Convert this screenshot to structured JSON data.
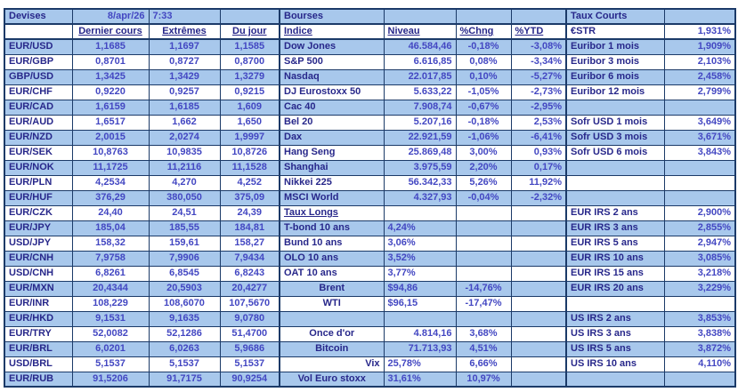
{
  "meta": {
    "date": "8/apr/26",
    "time": "7:33"
  },
  "colors": {
    "row_shade": "#a8c8ec",
    "label_text": "#27278a",
    "value_text": "#4347c2",
    "grid_line": "#1b3a68",
    "background": "#ffffff"
  },
  "devises": {
    "title": "Devises",
    "headers": [
      "Dernier cours",
      "Extrêmes",
      "Du jour"
    ],
    "rows": [
      {
        "pair": "EUR/USD",
        "last": "1,1685",
        "extremes": "1,1697",
        "day": "1,1585"
      },
      {
        "pair": "EUR/GBP",
        "last": "0,8701",
        "extremes": "0,8727",
        "day": "0,8700"
      },
      {
        "pair": "GBP/USD",
        "last": "1,3425",
        "extremes": "1,3429",
        "day": "1,3279"
      },
      {
        "pair": "EUR/CHF",
        "last": "0,9220",
        "extremes": "0,9257",
        "day": "0,9215"
      },
      {
        "pair": "EUR/CAD",
        "last": "1,6159",
        "extremes": "1,6185",
        "day": "1,609"
      },
      {
        "pair": "EUR/AUD",
        "last": "1,6517",
        "extremes": "1,662",
        "day": "1,650"
      },
      {
        "pair": "EUR/NZD",
        "last": "2,0015",
        "extremes": "2,0274",
        "day": "1,9997"
      },
      {
        "pair": "EUR/SEK",
        "last": "10,8763",
        "extremes": "10,9835",
        "day": "10,8726"
      },
      {
        "pair": "EUR/NOK",
        "last": "11,1725",
        "extremes": "11,2116",
        "day": "11,1528"
      },
      {
        "pair": "EUR/PLN",
        "last": "4,2534",
        "extremes": "4,270",
        "day": "4,252"
      },
      {
        "pair": "EUR/HUF",
        "last": "376,29",
        "extremes": "380,050",
        "day": "375,09"
      },
      {
        "pair": "EUR/CZK",
        "last": "24,40",
        "extremes": "24,51",
        "day": "24,39"
      },
      {
        "pair": "EUR/JPY",
        "last": "185,04",
        "extremes": "185,55",
        "day": "184,81"
      },
      {
        "pair": "USD/JPY",
        "last": "158,32",
        "extremes": "159,61",
        "day": "158,27"
      },
      {
        "pair": "EUR/CNH",
        "last": "7,9758",
        "extremes": "7,9906",
        "day": "7,9434"
      },
      {
        "pair": "USD/CNH",
        "last": "6,8261",
        "extremes": "6,8545",
        "day": "6,8243"
      },
      {
        "pair": "EUR/MXN",
        "last": "20,4344",
        "extremes": "20,5903",
        "day": "20,4277"
      },
      {
        "pair": "EUR/INR",
        "last": "108,229",
        "extremes": "108,6070",
        "day": "107,5670"
      },
      {
        "pair": "EUR/HKD",
        "last": "9,1531",
        "extremes": "9,1635",
        "day": "9,0780"
      },
      {
        "pair": "EUR/TRY",
        "last": "52,0082",
        "extremes": "52,1286",
        "day": "51,4700"
      },
      {
        "pair": "EUR/BRL",
        "last": "6,0201",
        "extremes": "6,0263",
        "day": "5,9686"
      },
      {
        "pair": "USD/BRL",
        "last": "5,1537",
        "extremes": "5,1537",
        "day": "5,1537"
      },
      {
        "pair": "EUR/RUB",
        "last": "91,5206",
        "extremes": "91,7175",
        "day": "90,9254"
      }
    ]
  },
  "bourses": {
    "title": "Bourses",
    "headers": [
      "Indice",
      "Niveau",
      "%Chng",
      "%YTD"
    ],
    "rows": [
      {
        "label": "Dow Jones",
        "niveau": "46.584,46",
        "chng": "-0,18%",
        "ytd": "-3,08%"
      },
      {
        "label": "S&P 500",
        "niveau": "6.616,85",
        "chng": "0,08%",
        "ytd": "-3,34%"
      },
      {
        "label": "Nasdaq",
        "niveau": "22.017,85",
        "chng": "0,10%",
        "ytd": "-5,27%"
      },
      {
        "label": "DJ Eurostoxx 50",
        "niveau": "5.633,22",
        "chng": "-1,05%",
        "ytd": "-2,73%"
      },
      {
        "label": "Cac 40",
        "niveau": "7.908,74",
        "chng": "-0,67%",
        "ytd": "-2,95%"
      },
      {
        "label": "Bel 20",
        "niveau": "5.207,16",
        "chng": "-0,18%",
        "ytd": "2,53%"
      },
      {
        "label": "Dax",
        "niveau": "22.921,59",
        "chng": "-1,06%",
        "ytd": "-6,41%"
      },
      {
        "label": "Hang Seng",
        "niveau": "25.869,48",
        "chng": "3,00%",
        "ytd": "0,93%"
      },
      {
        "label": "Shanghai",
        "niveau": "3.975,59",
        "chng": "2,20%",
        "ytd": "0,17%"
      },
      {
        "label": "Nikkei 225",
        "niveau": "56.342,33",
        "chng": "5,26%",
        "ytd": "11,92%"
      },
      {
        "label": "MSCI World",
        "niveau": "4.327,93",
        "chng": "-0,04%",
        "ytd": "-2,32%"
      },
      {
        "label": "Taux Longs",
        "underline": true
      },
      {
        "label": "T-bond 10 ans",
        "niveau": "4,24%",
        "align_niveau": "left"
      },
      {
        "label": "Bund 10 ans",
        "niveau": "3,06%",
        "align_niveau": "left"
      },
      {
        "label": "OLO 10 ans",
        "niveau": "3,52%",
        "align_niveau": "left"
      },
      {
        "label": "OAT 10 ans",
        "niveau": "3,77%",
        "align_niveau": "left"
      },
      {
        "label": "Brent",
        "align_label": "center",
        "niveau": "$94,86",
        "align_niveau": "left",
        "chng": "-14,76%"
      },
      {
        "label": "WTI",
        "align_label": "center",
        "niveau": "$96,15",
        "align_niveau": "left",
        "chng": "-17,47%"
      },
      {},
      {
        "label": "Once d'or",
        "align_label": "center",
        "niveau": "4.814,16",
        "chng": "3,68%"
      },
      {
        "label": "Bitcoin",
        "align_label": "center",
        "niveau": "71.713,93",
        "chng": "4,51%"
      },
      {
        "label": "Vix",
        "align_label": "right",
        "niveau": "25,78%",
        "align_niveau": "left",
        "chng": "6,66%"
      },
      {
        "label": "Vol Euro stoxx",
        "align_label": "center",
        "niveau": "31,61%",
        "align_niveau": "left",
        "chng": "10,97%"
      }
    ]
  },
  "taux_courts": {
    "title": "Taux Courts",
    "rows": [
      {
        "label": "€STR",
        "value": "1,931%"
      },
      {
        "label": "Euribor 1 mois",
        "value": "1,909%"
      },
      {
        "label": "Euribor 3 mois",
        "value": "2,103%"
      },
      {
        "label": "Euribor 6 mois",
        "value": "2,458%"
      },
      {
        "label": "Euribor 12 mois",
        "value": "2,799%"
      },
      {},
      {
        "label": "Sofr USD 1 mois",
        "value": "3,649%"
      },
      {
        "label": "Sofr USD 3 mois",
        "value": "3,671%"
      },
      {
        "label": "Sofr USD 6 mois",
        "value": "3,843%"
      },
      {},
      {},
      {},
      {
        "label": "EUR IRS 2 ans",
        "value": "2,900%"
      },
      {
        "label": "EUR IRS 3 ans",
        "value": "2,855%"
      },
      {
        "label": "EUR IRS 5 ans",
        "value": "2,947%"
      },
      {
        "label": "EUR IRS 10 ans",
        "value": "3,085%"
      },
      {
        "label": "EUR IRS 15 ans",
        "value": "3,218%"
      },
      {
        "label": "EUR IRS 20 ans",
        "value": "3,229%"
      },
      {},
      {
        "label": "US IRS 2 ans",
        "value": "3,853%"
      },
      {
        "label": "US IRS 3 ans",
        "value": "3,838%"
      },
      {
        "label": "US IRS 5 ans",
        "value": "3,872%"
      },
      {
        "label": "US IRS 10 ans",
        "value": "4,110%"
      },
      {}
    ]
  }
}
